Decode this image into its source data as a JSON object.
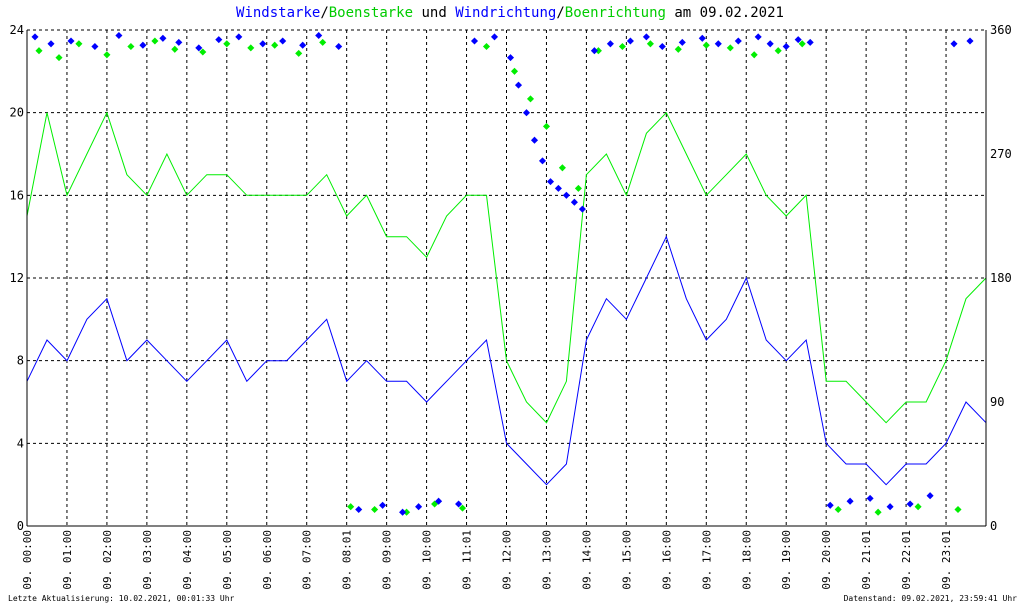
{
  "title": {
    "part1": "Windstarke",
    "sep1": "/",
    "part2": "Boenstarke",
    "part3": " und ",
    "part4": "Windrichtung",
    "sep2": "/",
    "part5": "Boenrichtung",
    "part6": " am 09.02.2021"
  },
  "footer": {
    "left": "Letzte Aktualisierung: 10.02.2021, 00:01:33 Uhr",
    "right": "Datenstand: 09.02.2021, 23:59:41 Uhr"
  },
  "colors": {
    "windstarke": "#0000ff",
    "boenstarke": "#00ee00",
    "windrichtung": "#0000ff",
    "boenrichtung": "#00ee00",
    "grid": "#000000"
  },
  "chart_data": {
    "type": "line",
    "date": "09.02.2021",
    "x_unit": "hour",
    "xlim": [
      0,
      24
    ],
    "ylim_left": [
      0,
      24
    ],
    "ylim_right": [
      0,
      360
    ],
    "yticks_left": [
      "0",
      "4",
      "8",
      "12",
      "16",
      "20",
      "24"
    ],
    "yticks_right": [
      "0",
      "90",
      "180",
      "270",
      "360"
    ],
    "xticks": [
      "09. 00:00",
      "09. 01:00",
      "09. 02:00",
      "09. 03:00",
      "09. 04:00",
      "09. 05:00",
      "09. 06:00",
      "09. 07:00",
      "09. 08:01",
      "09. 09:00",
      "09. 10:00",
      "09. 11:01",
      "09. 12:00",
      "09. 13:00",
      "09. 14:00",
      "09. 15:00",
      "09. 16:00",
      "09. 17:00",
      "09. 18:00",
      "09. 19:00",
      "09. 20:00",
      "09. 21:01",
      "09. 22:01",
      "09. 23:01"
    ],
    "grid": true,
    "series": [
      {
        "name": "Windstarke",
        "axis": "left",
        "kind": "line",
        "x": [
          0,
          0.5,
          1,
          1.5,
          2,
          2.5,
          3,
          3.5,
          4,
          4.5,
          5,
          5.5,
          6,
          6.5,
          7,
          7.5,
          8,
          8.5,
          9,
          9.5,
          10,
          10.5,
          11,
          11.5,
          12,
          12.5,
          13,
          13.5,
          14,
          14.5,
          15,
          15.5,
          16,
          16.5,
          17,
          17.5,
          18,
          18.5,
          19,
          19.5,
          20,
          20.5,
          21,
          21.5,
          22,
          22.5,
          23,
          23.5,
          24
        ],
        "y": [
          7,
          9,
          8,
          10,
          11,
          8,
          9,
          8,
          7,
          8,
          9,
          7,
          8,
          8,
          9,
          10,
          7,
          8,
          7,
          7,
          6,
          7,
          8,
          9,
          4,
          3,
          2,
          3,
          9,
          11,
          10,
          12,
          14,
          11,
          9,
          10,
          12,
          9,
          8,
          9,
          4,
          3,
          3,
          2,
          3,
          3,
          4,
          6,
          5
        ]
      },
      {
        "name": "Boenstarke",
        "axis": "left",
        "kind": "line",
        "x": [
          0,
          0.5,
          1,
          1.5,
          2,
          2.5,
          3,
          3.5,
          4,
          4.5,
          5,
          5.5,
          6,
          6.5,
          7,
          7.5,
          8,
          8.5,
          9,
          9.5,
          10,
          10.5,
          11,
          11.5,
          12,
          12.5,
          13,
          13.5,
          14,
          14.5,
          15,
          15.5,
          16,
          16.5,
          17,
          17.5,
          18,
          18.5,
          19,
          19.5,
          20,
          20.5,
          21,
          21.5,
          22,
          22.5,
          23,
          23.5,
          24
        ],
        "y": [
          15,
          20,
          16,
          18,
          20,
          17,
          16,
          18,
          16,
          17,
          17,
          16,
          16,
          16,
          16,
          17,
          15,
          16,
          14,
          14,
          13,
          15,
          16,
          16,
          8,
          6,
          5,
          7,
          17,
          18,
          16,
          19,
          20,
          18,
          16,
          17,
          18,
          16,
          15,
          16,
          7,
          7,
          6,
          5,
          6,
          6,
          8,
          11,
          12
        ]
      },
      {
        "name": "Windrichtung",
        "axis": "right",
        "kind": "scatter",
        "x": [
          0.2,
          0.6,
          1.1,
          1.7,
          2.3,
          2.9,
          3.4,
          3.8,
          4.3,
          4.8,
          5.3,
          5.9,
          6.4,
          6.9,
          7.3,
          7.8,
          8.3,
          8.9,
          9.4,
          9.8,
          10.3,
          10.8,
          11.2,
          11.7,
          12.1,
          12.3,
          12.5,
          12.7,
          12.9,
          13.1,
          13.3,
          13.5,
          13.7,
          13.9,
          14.2,
          14.6,
          15.1,
          15.5,
          15.9,
          16.4,
          16.9,
          17.3,
          17.8,
          18.3,
          18.6,
          19.0,
          19.3,
          19.6,
          20.1,
          20.6,
          21.1,
          21.6,
          22.1,
          22.6,
          23.2,
          23.6
        ],
        "y": [
          355,
          350,
          352,
          348,
          356,
          349,
          354,
          351,
          347,
          353,
          355,
          350,
          352,
          349,
          356,
          348,
          12,
          15,
          10,
          14,
          18,
          16,
          352,
          355,
          340,
          320,
          300,
          280,
          265,
          250,
          245,
          240,
          235,
          230,
          345,
          350,
          352,
          355,
          348,
          351,
          354,
          350,
          352,
          355,
          350,
          348,
          353,
          351,
          15,
          18,
          20,
          14,
          16,
          22,
          350,
          352
        ]
      },
      {
        "name": "Boenrichtung",
        "axis": "right",
        "kind": "scatter",
        "x": [
          0.3,
          0.8,
          1.3,
          2.0,
          2.6,
          3.2,
          3.7,
          4.4,
          5.0,
          5.6,
          6.2,
          6.8,
          7.4,
          8.1,
          8.7,
          9.5,
          10.2,
          10.9,
          11.5,
          12.2,
          12.6,
          13.0,
          13.4,
          13.8,
          14.3,
          14.9,
          15.6,
          16.3,
          17.0,
          17.6,
          18.2,
          18.8,
          19.4,
          20.3,
          21.3,
          22.3,
          23.3
        ],
        "y": [
          345,
          340,
          350,
          342,
          348,
          352,
          346,
          344,
          350,
          347,
          349,
          343,
          351,
          14,
          12,
          10,
          16,
          13,
          348,
          330,
          310,
          290,
          260,
          245,
          345,
          348,
          350,
          346,
          349,
          347,
          342,
          345,
          350,
          12,
          10,
          14,
          12
        ]
      }
    ]
  }
}
